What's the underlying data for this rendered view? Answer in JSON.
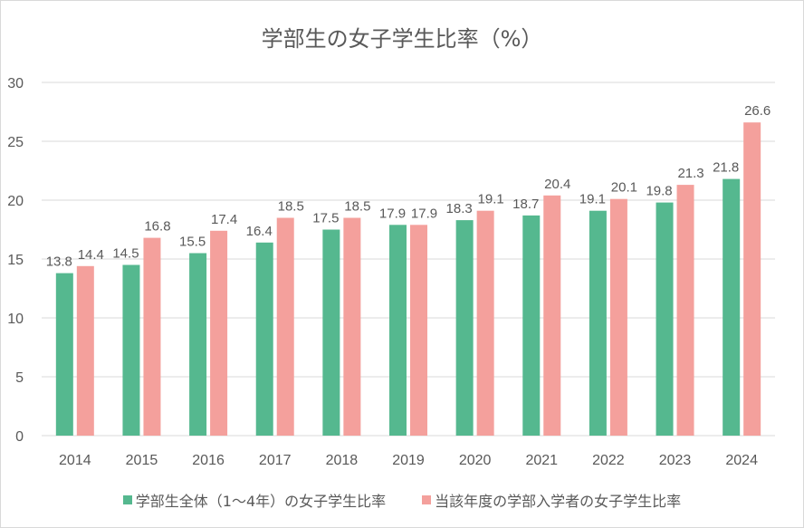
{
  "chart_data": {
    "type": "bar",
    "title": "学部生の女子学生比率（%）",
    "categories": [
      "2014",
      "2015",
      "2016",
      "2017",
      "2018",
      "2019",
      "2020",
      "2021",
      "2022",
      "2023",
      "2024"
    ],
    "series": [
      {
        "name": "学部生全体（1～4年）の女子学生比率",
        "color": "#55B88F",
        "values": [
          13.8,
          14.5,
          15.5,
          16.4,
          17.5,
          17.9,
          18.3,
          18.7,
          19.1,
          19.8,
          21.8
        ]
      },
      {
        "name": "当該年度の学部入学者の女子学生比率",
        "color": "#F4A09C",
        "values": [
          14.4,
          16.8,
          17.4,
          18.5,
          18.5,
          17.9,
          19.1,
          20.4,
          20.1,
          21.3,
          26.6
        ]
      }
    ],
    "ylim": [
      0,
      30
    ],
    "yticks": [
      0,
      5,
      10,
      15,
      20,
      25,
      30
    ],
    "grid": true,
    "legend": "bottom",
    "xlabel": "",
    "ylabel": ""
  }
}
